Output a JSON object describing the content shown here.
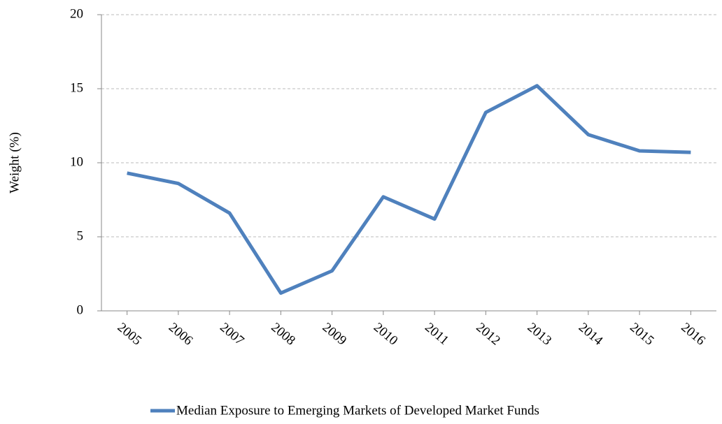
{
  "chart_data": {
    "type": "line",
    "y_label": "Weight (%)",
    "categories": [
      "2005",
      "2006",
      "2007",
      "2008",
      "2009",
      "2010",
      "2011",
      "2012",
      "2013",
      "2014",
      "2015",
      "2016"
    ],
    "series": [
      {
        "name": "Median Exposure to Emerging Markets of Developed Market Funds",
        "color": "#4f81bd",
        "values": [
          9.3,
          8.6,
          6.6,
          1.2,
          2.7,
          7.7,
          6.2,
          13.4,
          15.2,
          11.9,
          10.8,
          10.7
        ]
      }
    ],
    "ylim": [
      0,
      20
    ],
    "yticks": [
      0,
      5,
      10,
      15,
      20
    ],
    "grid": true,
    "legend": "bottom"
  }
}
